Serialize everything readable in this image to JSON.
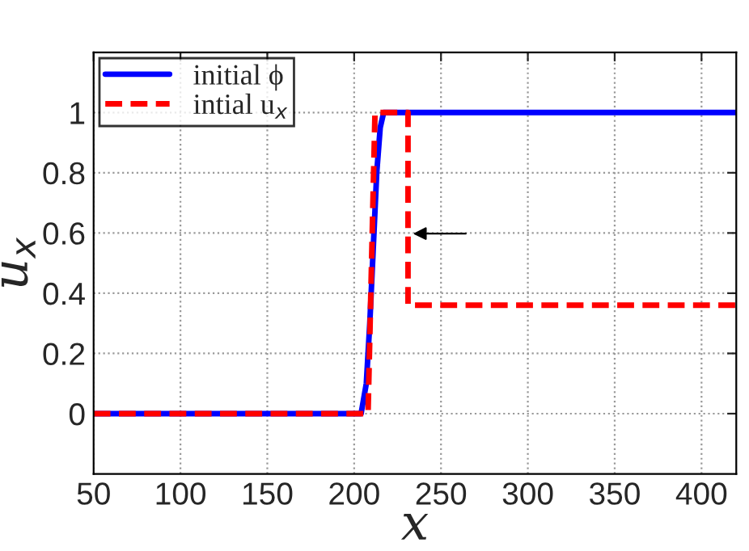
{
  "chart_data": {
    "type": "line",
    "xlabel": "x",
    "ylabel": "u$_{x}$",
    "xlim": [
      50,
      420
    ],
    "xticks": [
      50,
      100,
      150,
      200,
      250,
      300,
      350,
      400
    ],
    "ylim": [
      -0.2,
      1.2
    ],
    "yticks": [
      0,
      0.2,
      0.4,
      0.6,
      0.8,
      1
    ],
    "grid": true,
    "legend": "top left",
    "marker": "none",
    "series": [
      {
        "name": "initial ϕ",
        "color": "#0000ff",
        "line_style": "solid",
        "x": [
          50,
          204,
          207,
          209,
          211,
          213,
          215,
          217,
          420
        ],
        "values": [
          0,
          0,
          0.1,
          0.3,
          0.55,
          0.8,
          0.95,
          1,
          1
        ]
      },
      {
        "name": "intial u$_{x}$",
        "color": "#ff0000",
        "line_style": "dashed",
        "x": [
          50,
          208,
          212,
          231,
          231,
          420
        ],
        "values": [
          0,
          0,
          1,
          1,
          0.36,
          0.36
        ]
      }
    ]
  }
}
